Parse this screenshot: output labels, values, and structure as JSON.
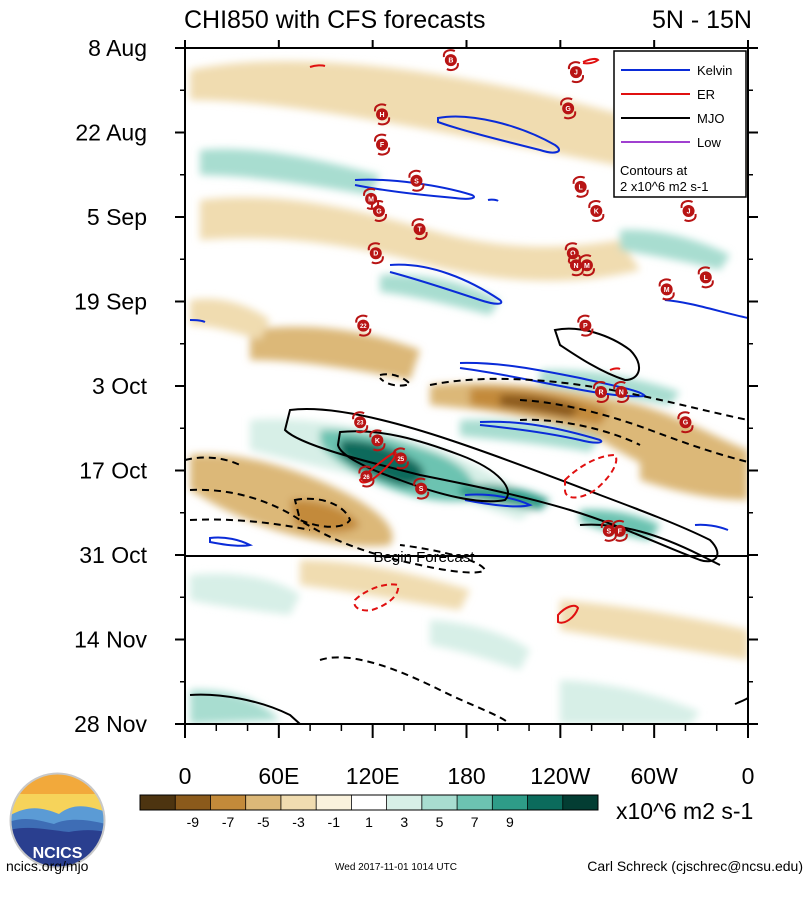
{
  "chart_data": {
    "type": "heatmap",
    "title": "CHI850 with CFS forecasts",
    "subtitle": "5N - 15N",
    "x_ticks": [
      "0",
      "60E",
      "120E",
      "180",
      "120W",
      "60W",
      "0"
    ],
    "x_range_deg": [
      0,
      360
    ],
    "y_ticks": [
      "8 Aug",
      "22 Aug",
      "5 Sep",
      "19 Sep",
      "3 Oct",
      "17 Oct",
      "31 Oct",
      "14 Nov",
      "28 Nov"
    ],
    "y_range": [
      "2017-08-08",
      "2017-11-28"
    ],
    "forecast_start": "2017-10-31",
    "forecast_label": "Begin Forecast",
    "colorbar": {
      "labels": [
        "-9",
        "-7",
        "-5",
        "-3",
        "-1",
        "1",
        "3",
        "5",
        "7",
        "9"
      ],
      "colors": [
        "#4d3410",
        "#8b5a1b",
        "#c38a3a",
        "#dcb878",
        "#f0dcb0",
        "#faf2dd",
        "#ffffff",
        "#d7efe7",
        "#a8ddd0",
        "#6cc3b1",
        "#2e9c88",
        "#0b6b5c",
        "#033d33"
      ],
      "units": "x10^6 m2 s-1"
    },
    "legend": {
      "items": [
        {
          "label": "Kelvin",
          "color": "#0a2bd8"
        },
        {
          "label": "ER",
          "color": "#e01010"
        },
        {
          "label": "MJO",
          "color": "#000000"
        },
        {
          "label": "Low",
          "color": "#a040d0"
        }
      ],
      "note_line1": "Contours at",
      "note_line2": "2 x10^6 m2 s-1",
      "position": "top-right"
    },
    "storms": [
      {
        "label": "B",
        "lon": 170,
        "date": "2017-08-10"
      },
      {
        "label": "J",
        "lon": 250,
        "date": "2017-08-12"
      },
      {
        "label": "G",
        "lon": 245,
        "date": "2017-08-18"
      },
      {
        "label": "H",
        "lon": 126,
        "date": "2017-08-19"
      },
      {
        "label": "F",
        "lon": 126,
        "date": "2017-08-24"
      },
      {
        "label": "S",
        "lon": 148,
        "date": "2017-08-30"
      },
      {
        "label": "L",
        "lon": 253,
        "date": "2017-08-31"
      },
      {
        "label": "M",
        "lon": 119,
        "date": "2017-09-02"
      },
      {
        "label": "G",
        "lon": 124,
        "date": "2017-09-04"
      },
      {
        "label": "K",
        "lon": 263,
        "date": "2017-09-04"
      },
      {
        "label": "J",
        "lon": 322,
        "date": "2017-09-04"
      },
      {
        "label": "T",
        "lon": 150,
        "date": "2017-09-07"
      },
      {
        "label": "D",
        "lon": 122,
        "date": "2017-09-11"
      },
      {
        "label": "O",
        "lon": 248,
        "date": "2017-09-11"
      },
      {
        "label": "N",
        "lon": 250,
        "date": "2017-09-13"
      },
      {
        "label": "M",
        "lon": 257,
        "date": "2017-09-13"
      },
      {
        "label": "L",
        "lon": 333,
        "date": "2017-09-15"
      },
      {
        "label": "M",
        "lon": 308,
        "date": "2017-09-17"
      },
      {
        "label": "22",
        "lon": 114,
        "date": "2017-09-23"
      },
      {
        "label": "P",
        "lon": 256,
        "date": "2017-09-23"
      },
      {
        "label": "R",
        "lon": 266,
        "date": "2017-10-04"
      },
      {
        "label": "N",
        "lon": 279,
        "date": "2017-10-04"
      },
      {
        "label": "23",
        "lon": 112,
        "date": "2017-10-09"
      },
      {
        "label": "G",
        "lon": 320,
        "date": "2017-10-09"
      },
      {
        "label": "K",
        "lon": 123,
        "date": "2017-10-12"
      },
      {
        "label": "25",
        "lon": 138,
        "date": "2017-10-15"
      },
      {
        "label": "26",
        "lon": 116,
        "date": "2017-10-18"
      },
      {
        "label": "S",
        "lon": 151,
        "date": "2017-10-20"
      },
      {
        "label": "S",
        "lon": 271,
        "date": "2017-10-27"
      },
      {
        "label": "F",
        "lon": 278,
        "date": "2017-10-27"
      }
    ]
  },
  "footer": {
    "left": "ncics.org/mjo",
    "center": "Wed 2017-11-01 1014 UTC",
    "right": "Carl Schreck (cjschrec@ncsu.edu)"
  },
  "logo": {
    "text": "NCICS"
  }
}
